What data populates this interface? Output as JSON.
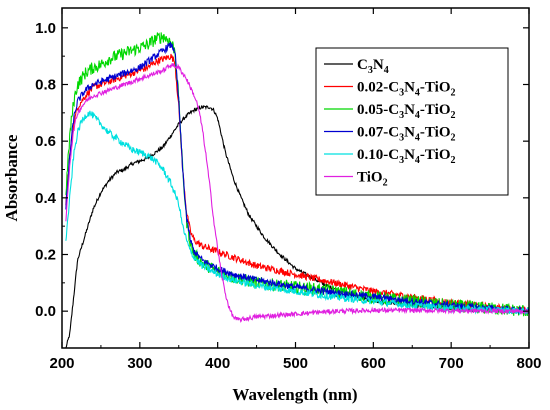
{
  "chart_data": {
    "type": "line",
    "xlabel": "Wavelength (nm)",
    "ylabel": "Absorbance",
    "xlim": [
      200,
      800
    ],
    "ylim": [
      -0.13,
      1.07
    ],
    "xticks": [
      200,
      300,
      400,
      500,
      600,
      700,
      800
    ],
    "yticks": [
      0.0,
      0.2,
      0.4,
      0.6,
      0.8,
      1.0
    ],
    "grid": false,
    "legend_position": "top-right",
    "series": [
      {
        "name": "C3N4",
        "label_parts": [
          "C",
          "3",
          "N",
          "4"
        ],
        "color": "#000000",
        "noise": 0.006,
        "x": [
          205,
          210,
          215,
          220,
          230,
          240,
          250,
          260,
          270,
          280,
          290,
          300,
          310,
          320,
          330,
          340,
          350,
          360,
          370,
          380,
          390,
          395,
          400,
          410,
          420,
          430,
          440,
          450,
          460,
          480,
          500,
          520,
          540,
          560,
          580,
          600,
          650,
          700,
          750,
          800
        ],
        "y": [
          -0.13,
          -0.08,
          0.05,
          0.18,
          0.27,
          0.36,
          0.42,
          0.46,
          0.49,
          0.5,
          0.52,
          0.53,
          0.54,
          0.56,
          0.58,
          0.62,
          0.66,
          0.69,
          0.71,
          0.72,
          0.72,
          0.71,
          0.68,
          0.56,
          0.47,
          0.4,
          0.34,
          0.3,
          0.26,
          0.2,
          0.15,
          0.12,
          0.09,
          0.07,
          0.05,
          0.035,
          0.02,
          0.01,
          0.005,
          0.0
        ]
      },
      {
        "name": "0.02-C3N4-TiO2",
        "label_parts": [
          "0.02-C",
          "3",
          "N",
          "4",
          "-TiO",
          "2"
        ],
        "color": "#ff0000",
        "noise": 0.012,
        "x": [
          205,
          210,
          215,
          220,
          230,
          240,
          250,
          260,
          270,
          280,
          290,
          300,
          310,
          320,
          330,
          340,
          345,
          350,
          355,
          360,
          365,
          370,
          380,
          400,
          420,
          450,
          500,
          550,
          600,
          650,
          700,
          750,
          800
        ],
        "y": [
          0.38,
          0.55,
          0.66,
          0.72,
          0.76,
          0.79,
          0.8,
          0.81,
          0.82,
          0.83,
          0.84,
          0.85,
          0.86,
          0.88,
          0.89,
          0.9,
          0.88,
          0.72,
          0.5,
          0.35,
          0.28,
          0.25,
          0.23,
          0.21,
          0.19,
          0.16,
          0.13,
          0.1,
          0.07,
          0.05,
          0.03,
          0.015,
          0.0
        ]
      },
      {
        "name": "0.05-C3N4-TiO2",
        "label_parts": [
          "0.05-C",
          "3",
          "N",
          "4",
          "-TiO",
          "2"
        ],
        "color": "#00d800",
        "noise": 0.022,
        "x": [
          205,
          210,
          215,
          220,
          230,
          240,
          250,
          260,
          270,
          280,
          290,
          300,
          310,
          320,
          330,
          340,
          345,
          350,
          355,
          360,
          365,
          370,
          380,
          400,
          420,
          450,
          500,
          550,
          600,
          650,
          700,
          750,
          800
        ],
        "y": [
          0.42,
          0.62,
          0.74,
          0.8,
          0.84,
          0.86,
          0.87,
          0.89,
          0.9,
          0.91,
          0.92,
          0.93,
          0.94,
          0.96,
          0.97,
          0.95,
          0.92,
          0.75,
          0.5,
          0.32,
          0.24,
          0.2,
          0.17,
          0.14,
          0.12,
          0.1,
          0.085,
          0.07,
          0.05,
          0.035,
          0.02,
          0.01,
          0.0
        ]
      },
      {
        "name": "0.07-C3N4-TiO2",
        "label_parts": [
          "0.07-C",
          "3",
          "N",
          "4",
          "-TiO",
          "2"
        ],
        "color": "#0000d0",
        "noise": 0.012,
        "x": [
          205,
          210,
          215,
          220,
          230,
          240,
          250,
          260,
          270,
          280,
          290,
          300,
          310,
          320,
          330,
          340,
          345,
          350,
          355,
          360,
          365,
          370,
          380,
          400,
          420,
          450,
          500,
          550,
          600,
          650,
          700,
          750,
          800
        ],
        "y": [
          0.36,
          0.55,
          0.68,
          0.74,
          0.78,
          0.8,
          0.81,
          0.82,
          0.83,
          0.84,
          0.85,
          0.86,
          0.88,
          0.9,
          0.92,
          0.94,
          0.92,
          0.74,
          0.5,
          0.33,
          0.25,
          0.21,
          0.18,
          0.15,
          0.13,
          0.11,
          0.085,
          0.065,
          0.05,
          0.035,
          0.02,
          0.01,
          0.0
        ]
      },
      {
        "name": "0.10-C3N4-TiO2",
        "label_parts": [
          "0.10-C",
          "3",
          "N",
          "4",
          "-TiO",
          "2"
        ],
        "color": "#00e0e0",
        "noise": 0.012,
        "x": [
          205,
          210,
          215,
          220,
          225,
          230,
          235,
          240,
          250,
          260,
          270,
          280,
          290,
          300,
          310,
          320,
          330,
          340,
          350,
          355,
          360,
          365,
          370,
          380,
          400,
          420,
          450,
          500,
          550,
          600,
          650,
          700,
          750,
          800
        ],
        "y": [
          0.25,
          0.4,
          0.55,
          0.63,
          0.67,
          0.69,
          0.7,
          0.69,
          0.66,
          0.63,
          0.61,
          0.59,
          0.57,
          0.56,
          0.55,
          0.53,
          0.5,
          0.45,
          0.38,
          0.3,
          0.25,
          0.21,
          0.19,
          0.16,
          0.13,
          0.11,
          0.09,
          0.07,
          0.05,
          0.035,
          0.02,
          0.01,
          0.005,
          0.0
        ]
      },
      {
        "name": "TiO2",
        "label_parts": [
          "TiO",
          "2"
        ],
        "color": "#e020e0",
        "noise": 0.008,
        "x": [
          205,
          210,
          215,
          220,
          230,
          240,
          250,
          260,
          270,
          280,
          290,
          300,
          310,
          320,
          330,
          340,
          350,
          360,
          370,
          375,
          380,
          385,
          390,
          395,
          400,
          405,
          410,
          415,
          420,
          425,
          430,
          440,
          450,
          500,
          550,
          600,
          650,
          700,
          750,
          800
        ],
        "y": [
          0.32,
          0.52,
          0.64,
          0.7,
          0.74,
          0.76,
          0.77,
          0.78,
          0.79,
          0.8,
          0.81,
          0.82,
          0.83,
          0.84,
          0.85,
          0.87,
          0.86,
          0.82,
          0.76,
          0.72,
          0.65,
          0.55,
          0.44,
          0.32,
          0.22,
          0.13,
          0.06,
          0.01,
          -0.02,
          -0.03,
          -0.03,
          -0.025,
          -0.02,
          -0.01,
          0.0,
          0.003,
          0.003,
          0.002,
          0.001,
          0.0
        ]
      }
    ]
  }
}
